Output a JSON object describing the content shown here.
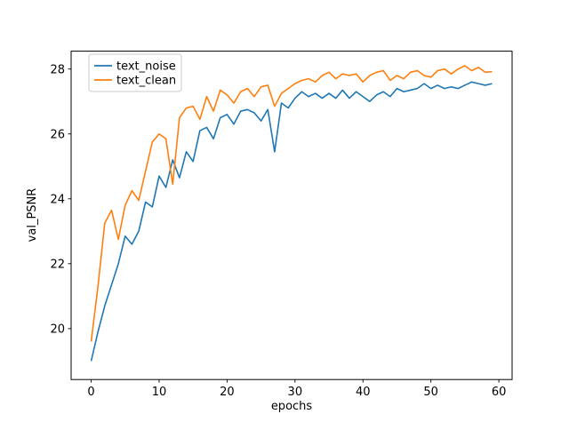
{
  "chart_data": {
    "type": "line",
    "title": "",
    "xlabel": "epochs",
    "ylabel": "val_PSNR",
    "xlim": [
      -2.95,
      61.95
    ],
    "ylim": [
      18.43,
      28.55
    ],
    "xticks": [
      0,
      10,
      20,
      30,
      40,
      50,
      60
    ],
    "yticks": [
      20,
      22,
      24,
      26,
      28
    ],
    "grid": false,
    "legend_position": "upper-left",
    "x": [
      0,
      1,
      2,
      3,
      4,
      5,
      6,
      7,
      8,
      9,
      10,
      11,
      12,
      13,
      14,
      15,
      16,
      17,
      18,
      19,
      20,
      21,
      22,
      23,
      24,
      25,
      26,
      27,
      28,
      29,
      30,
      31,
      32,
      33,
      34,
      35,
      36,
      37,
      38,
      39,
      40,
      41,
      42,
      43,
      44,
      45,
      46,
      47,
      48,
      49,
      50,
      51,
      52,
      53,
      54,
      55,
      56,
      57,
      58,
      59
    ],
    "series": [
      {
        "name": "text_noise",
        "color": "#1f77b4",
        "values": [
          19.0,
          19.9,
          20.7,
          21.35,
          22.0,
          22.85,
          22.6,
          23.0,
          23.9,
          23.75,
          24.7,
          24.35,
          25.2,
          24.65,
          25.45,
          25.15,
          26.1,
          26.2,
          25.85,
          26.5,
          26.6,
          26.3,
          26.7,
          26.75,
          26.65,
          26.4,
          26.75,
          25.45,
          26.95,
          26.8,
          27.1,
          27.3,
          27.15,
          27.25,
          27.1,
          27.25,
          27.1,
          27.35,
          27.1,
          27.3,
          27.15,
          27.0,
          27.2,
          27.3,
          27.15,
          27.4,
          27.3,
          27.35,
          27.4,
          27.55,
          27.4,
          27.5,
          27.4,
          27.45,
          27.4,
          27.5,
          27.6,
          27.55,
          27.5,
          27.55
        ]
      },
      {
        "name": "text_clean",
        "color": "#ff7f0e",
        "values": [
          19.6,
          21.3,
          23.25,
          23.65,
          22.75,
          23.8,
          24.25,
          23.95,
          24.85,
          25.75,
          26.0,
          25.85,
          24.45,
          26.5,
          26.8,
          26.85,
          26.45,
          27.15,
          26.7,
          27.35,
          27.2,
          26.95,
          27.3,
          27.4,
          27.15,
          27.45,
          27.5,
          26.85,
          27.25,
          27.4,
          27.55,
          27.65,
          27.7,
          27.6,
          27.8,
          27.9,
          27.7,
          27.85,
          27.8,
          27.85,
          27.6,
          27.8,
          27.9,
          27.95,
          27.65,
          27.8,
          27.7,
          27.9,
          27.95,
          27.8,
          27.75,
          27.95,
          28.0,
          27.85,
          28.0,
          28.1,
          27.95,
          28.05,
          27.9,
          27.92
        ]
      }
    ]
  }
}
